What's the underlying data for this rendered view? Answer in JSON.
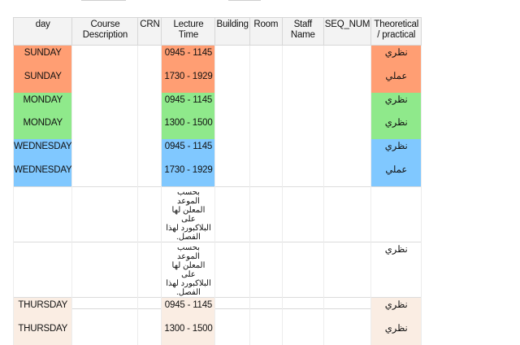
{
  "colors": {
    "sunday": "#FF9E73",
    "monday": "#8FE98B",
    "wednesday": "#80C8FF",
    "thursday": "#FAEDE3",
    "blank": "#FFFFFF",
    "header_bg": "#F3F3F3",
    "grid": "#D7D7D7"
  },
  "table": {
    "headers": [
      "day",
      "Course Description",
      "CRN",
      "Lecture Time",
      "Building",
      "Room",
      "Staff Name",
      "SEQ_NUM",
      "Theoretical / practical"
    ],
    "rows": [
      {
        "day": "SUNDAY",
        "desc": "",
        "crn": "",
        "time": "0945 - 1145",
        "building": "",
        "room": "",
        "staff": "",
        "seq": "",
        "type": "نظري",
        "day_color": "sunday",
        "time_color": "sunday",
        "type_color": "sunday"
      },
      {
        "day": "SUNDAY",
        "desc": "",
        "crn": "",
        "time": "1730 - 1929",
        "building": "",
        "room": "",
        "staff": "",
        "seq": "",
        "type": "عملي",
        "day_color": "sunday",
        "time_color": "sunday",
        "type_color": "sunday"
      },
      {
        "day": "MONDAY",
        "desc": "",
        "crn": "",
        "time": "0945 - 1145",
        "building": "",
        "room": "",
        "staff": "",
        "seq": "",
        "type": "نظري",
        "day_color": "monday",
        "time_color": "monday",
        "type_color": "monday"
      },
      {
        "day": "MONDAY",
        "desc": "",
        "crn": "",
        "time": "1300 - 1500",
        "building": "",
        "room": "",
        "staff": "",
        "seq": "",
        "type": "نظري",
        "day_color": "monday",
        "time_color": "monday",
        "type_color": "monday"
      },
      {
        "day": "WEDNESDAY",
        "desc": "",
        "crn": "",
        "time": "0945 - 1145",
        "building": "",
        "room": "",
        "staff": "",
        "seq": "",
        "type": "نظري",
        "day_color": "wednesday",
        "time_color": "wednesday",
        "type_color": "wednesday"
      },
      {
        "day": "WEDNESDAY",
        "desc": "",
        "crn": "",
        "time": "1730 - 1929",
        "building": "",
        "room": "",
        "staff": "",
        "seq": "",
        "type": "عملي",
        "day_color": "wednesday",
        "time_color": "wednesday",
        "type_color": "wednesday"
      },
      {
        "day": "",
        "desc": "",
        "crn": "",
        "time": "بحسب الموعد المعلن لها على البلاكبورد لهذا الفصل.",
        "building": "",
        "room": "",
        "staff": "",
        "seq": "",
        "type": "",
        "day_color": "blank",
        "time_color": "blank",
        "type_color": "blank"
      },
      {
        "day": "",
        "desc": "",
        "crn": "",
        "time": "بحسب الموعد المعلن لها على البلاكبورد لهذا الفصل.",
        "building": "",
        "room": "",
        "staff": "",
        "seq": "",
        "type": "نظري",
        "day_color": "blank",
        "time_color": "blank",
        "type_color": "blank"
      },
      {
        "day": "THURSDAY",
        "desc": "",
        "crn": "",
        "time": "0945 - 1145",
        "building": "",
        "room": "",
        "staff": "",
        "seq": "",
        "type": "نظري",
        "day_color": "thursday",
        "time_color": "thursday",
        "type_color": "thursday"
      },
      {
        "day": "THURSDAY",
        "desc": "",
        "crn": "",
        "time": "1300 - 1500",
        "building": "",
        "room": "",
        "staff": "",
        "seq": "",
        "type": "نظري",
        "day_color": "thursday",
        "time_color": "thursday",
        "type_color": "thursday"
      }
    ]
  }
}
